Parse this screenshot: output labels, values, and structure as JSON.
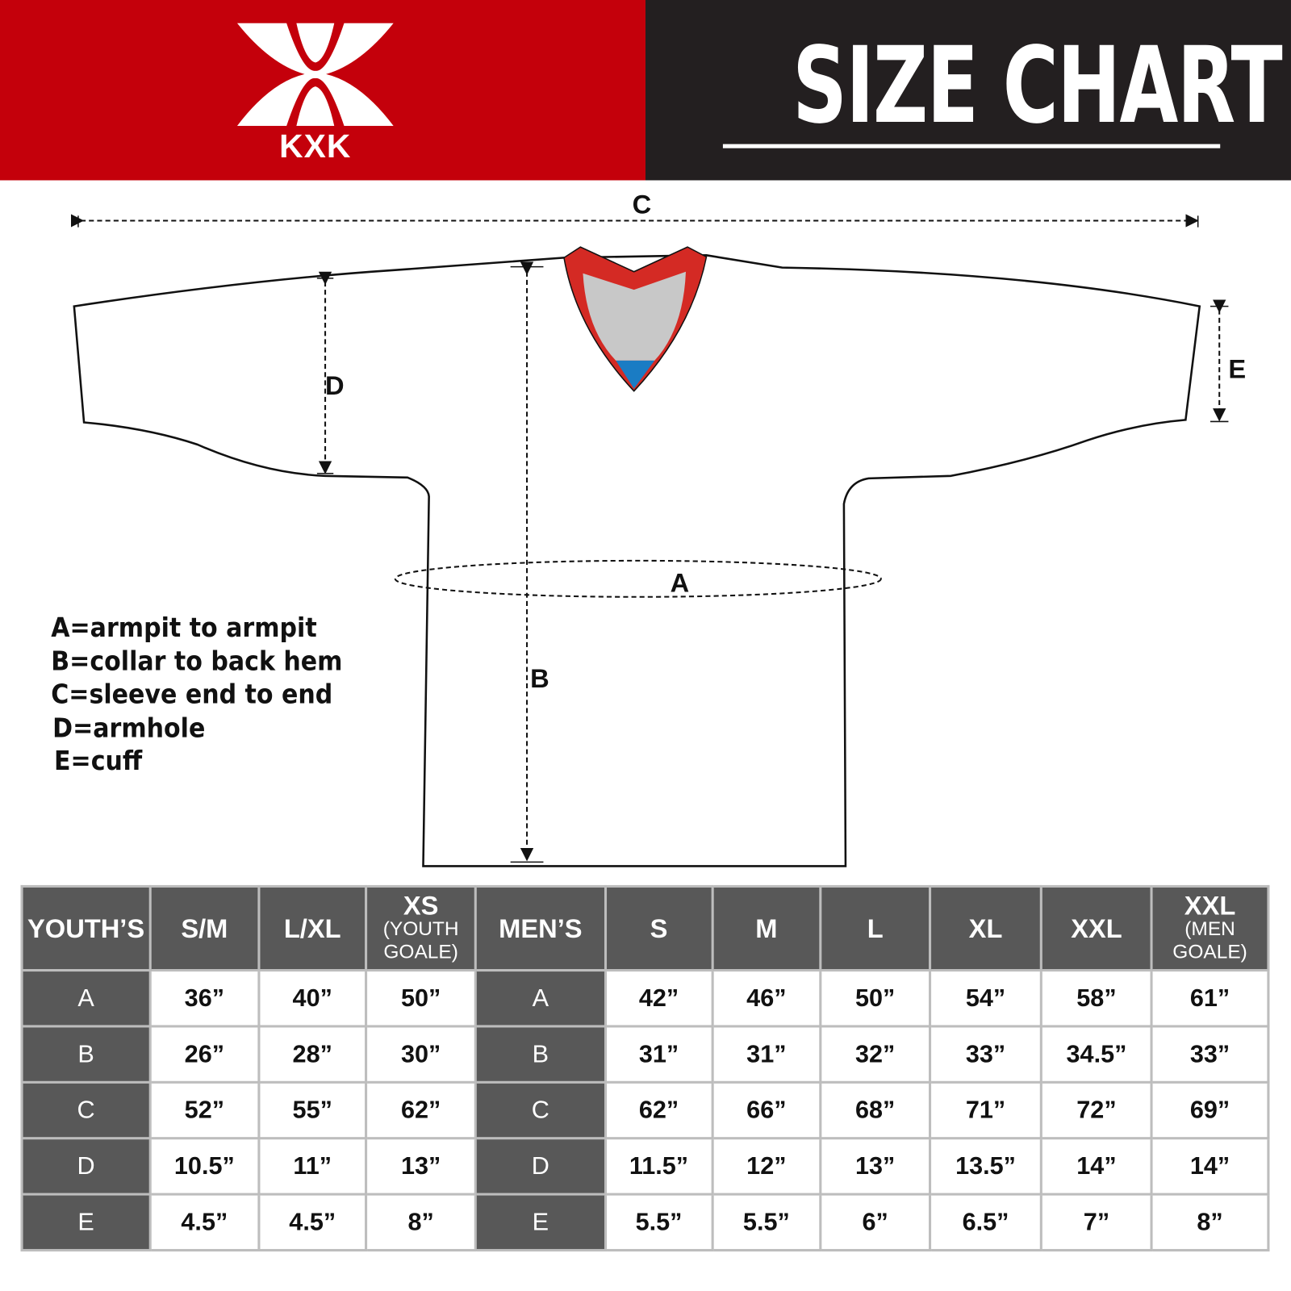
{
  "header": {
    "brand": "KXK",
    "title": "SIZE CHART",
    "colors": {
      "brand_red": "#c4000b",
      "dark": "#231f20"
    }
  },
  "diagram": {
    "labels": {
      "a": "A",
      "b": "B",
      "c": "C",
      "d": "D",
      "e": "E"
    },
    "collar_colors": {
      "trim": "#d42a24",
      "inner": "#c8c8c8",
      "tip": "#1a7cc4"
    }
  },
  "legend": [
    "A=armpit to armpit",
    "B=collar to back hem",
    "C=sleeve end to end",
    "D=armhole",
    "E=cuff"
  ],
  "table": {
    "youth_header": "YOUTH’S",
    "youth_sizes": [
      {
        "main": "S/M",
        "sub": ""
      },
      {
        "main": "L/XL",
        "sub": ""
      },
      {
        "main": "XS",
        "sub": "(YOUTH GOALE)"
      }
    ],
    "men_header": "MEN’S",
    "men_sizes": [
      {
        "main": "S",
        "sub": ""
      },
      {
        "main": "M",
        "sub": ""
      },
      {
        "main": "L",
        "sub": ""
      },
      {
        "main": "XL",
        "sub": ""
      },
      {
        "main": "XXL",
        "sub": ""
      },
      {
        "main": "XXL",
        "sub": "(MEN GOALE)"
      }
    ],
    "rows": [
      {
        "label": "A",
        "youth": [
          "36”",
          "40”",
          "50”"
        ],
        "men": [
          "42”",
          "46”",
          "50”",
          "54”",
          "58”",
          "61”"
        ]
      },
      {
        "label": "B",
        "youth": [
          "26”",
          "28”",
          "30”"
        ],
        "men": [
          "31”",
          "31”",
          "32”",
          "33”",
          "34.5”",
          "33”"
        ]
      },
      {
        "label": "C",
        "youth": [
          "52”",
          "55”",
          "62”"
        ],
        "men": [
          "62”",
          "66”",
          "68”",
          "71”",
          "72”",
          "69”"
        ]
      },
      {
        "label": "D",
        "youth": [
          "10.5”",
          "11”",
          "13”"
        ],
        "men": [
          "11.5”",
          "12”",
          "13”",
          "13.5”",
          "14”",
          "14”"
        ]
      },
      {
        "label": "E",
        "youth": [
          "4.5”",
          "4.5”",
          "8”"
        ],
        "men": [
          "5.5”",
          "5.5”",
          "6”",
          "6.5”",
          "7”",
          "8”"
        ]
      }
    ]
  }
}
